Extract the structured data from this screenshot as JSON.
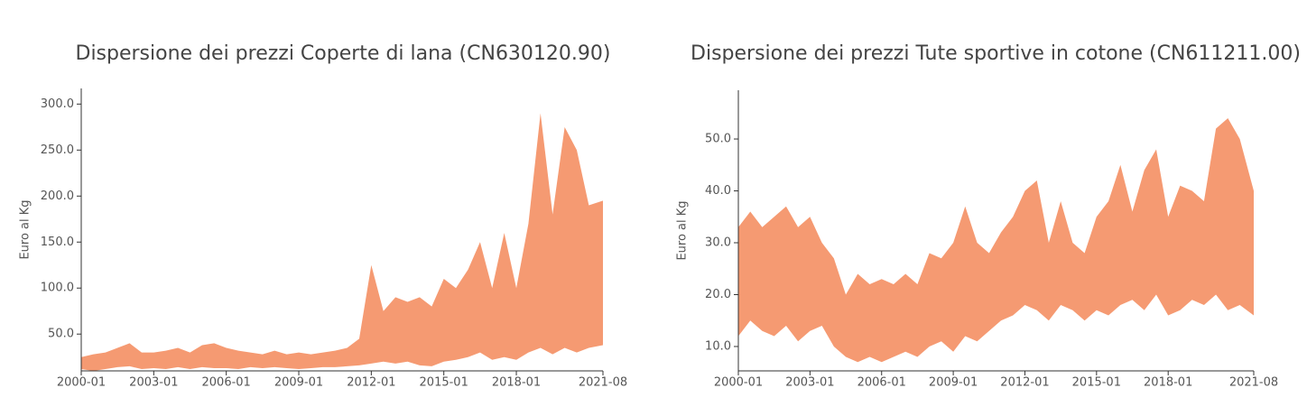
{
  "chart_data": [
    {
      "type": "range-area",
      "title": "Dispersione dei prezzi Coperte di lana (CN630120.90)",
      "y_label": "Euro al Kg",
      "color": "#f59a72",
      "x": [
        "2000-01",
        "2000-07",
        "2001-01",
        "2001-07",
        "2002-01",
        "2002-07",
        "2003-01",
        "2003-07",
        "2004-01",
        "2004-07",
        "2005-01",
        "2005-07",
        "2006-01",
        "2006-07",
        "2007-01",
        "2007-07",
        "2008-01",
        "2008-07",
        "2009-01",
        "2009-07",
        "2010-01",
        "2010-07",
        "2011-01",
        "2011-07",
        "2012-01",
        "2012-07",
        "2013-01",
        "2013-07",
        "2014-01",
        "2014-07",
        "2015-01",
        "2015-07",
        "2016-01",
        "2016-07",
        "2017-01",
        "2017-07",
        "2018-01",
        "2018-07",
        "2019-01",
        "2019-07",
        "2020-01",
        "2020-07",
        "2021-01",
        "2021-08"
      ],
      "lower": [
        12,
        10,
        12,
        14,
        15,
        12,
        13,
        12,
        14,
        12,
        14,
        13,
        13,
        12,
        14,
        13,
        14,
        13,
        12,
        13,
        14,
        14,
        15,
        16,
        18,
        20,
        18,
        20,
        16,
        15,
        20,
        22,
        25,
        30,
        22,
        25,
        22,
        30,
        35,
        28,
        35,
        30,
        35,
        38
      ],
      "upper": [
        25,
        28,
        30,
        35,
        40,
        30,
        30,
        32,
        35,
        30,
        38,
        40,
        35,
        32,
        30,
        28,
        32,
        28,
        30,
        28,
        30,
        32,
        35,
        45,
        125,
        75,
        90,
        85,
        90,
        80,
        110,
        100,
        120,
        150,
        100,
        160,
        100,
        170,
        290,
        180,
        275,
        250,
        190,
        195
      ],
      "ylim": [
        10,
        317
      ],
      "yticks": [
        {
          "value": 50,
          "label": "50.0"
        },
        {
          "value": 100,
          "label": "100.0"
        },
        {
          "value": 150,
          "label": "150.0"
        },
        {
          "value": 200,
          "label": "200.0"
        },
        {
          "value": 250,
          "label": "250.0"
        },
        {
          "value": 300,
          "label": "300.0"
        }
      ],
      "xticks": [
        "2000-01",
        "2003-01",
        "2006-01",
        "2009-01",
        "2012-01",
        "2015-01",
        "2018-01",
        "2021-08"
      ]
    },
    {
      "type": "range-area",
      "title": "Dispersione dei prezzi Tute sportive in cotone (CN611211.00)",
      "y_label": "Euro al Kg",
      "color": "#f59a72",
      "x": [
        "2000-01",
        "2000-07",
        "2001-01",
        "2001-07",
        "2002-01",
        "2002-07",
        "2003-01",
        "2003-07",
        "2004-01",
        "2004-07",
        "2005-01",
        "2005-07",
        "2006-01",
        "2006-07",
        "2007-01",
        "2007-07",
        "2008-01",
        "2008-07",
        "2009-01",
        "2009-07",
        "2010-01",
        "2010-07",
        "2011-01",
        "2011-07",
        "2012-01",
        "2012-07",
        "2013-01",
        "2013-07",
        "2014-01",
        "2014-07",
        "2015-01",
        "2015-07",
        "2016-01",
        "2016-07",
        "2017-01",
        "2017-07",
        "2018-01",
        "2018-07",
        "2019-01",
        "2019-07",
        "2020-01",
        "2020-07",
        "2021-01",
        "2021-08"
      ],
      "lower": [
        12,
        15,
        13,
        12,
        14,
        11,
        13,
        14,
        10,
        8,
        7,
        8,
        7,
        8,
        9,
        8,
        10,
        11,
        9,
        12,
        11,
        13,
        15,
        16,
        18,
        17,
        15,
        18,
        17,
        15,
        17,
        16,
        18,
        19,
        17,
        20,
        16,
        17,
        19,
        18,
        20,
        17,
        18,
        16
      ],
      "upper": [
        33,
        36,
        33,
        35,
        37,
        33,
        35,
        30,
        27,
        20,
        24,
        22,
        23,
        22,
        24,
        22,
        28,
        27,
        30,
        37,
        30,
        28,
        32,
        35,
        40,
        42,
        30,
        38,
        30,
        28,
        35,
        38,
        45,
        36,
        44,
        48,
        35,
        41,
        40,
        38,
        52,
        54,
        50,
        40
      ],
      "ylim": [
        5.3,
        59.4
      ],
      "yticks": [
        {
          "value": 10,
          "label": "10.0"
        },
        {
          "value": 20,
          "label": "20.0"
        },
        {
          "value": 30,
          "label": "30.0"
        },
        {
          "value": 40,
          "label": "40.0"
        },
        {
          "value": 50,
          "label": "50.0"
        }
      ],
      "xticks": [
        "2000-01",
        "2003-01",
        "2006-01",
        "2009-01",
        "2012-01",
        "2015-01",
        "2018-01",
        "2021-08"
      ]
    }
  ]
}
